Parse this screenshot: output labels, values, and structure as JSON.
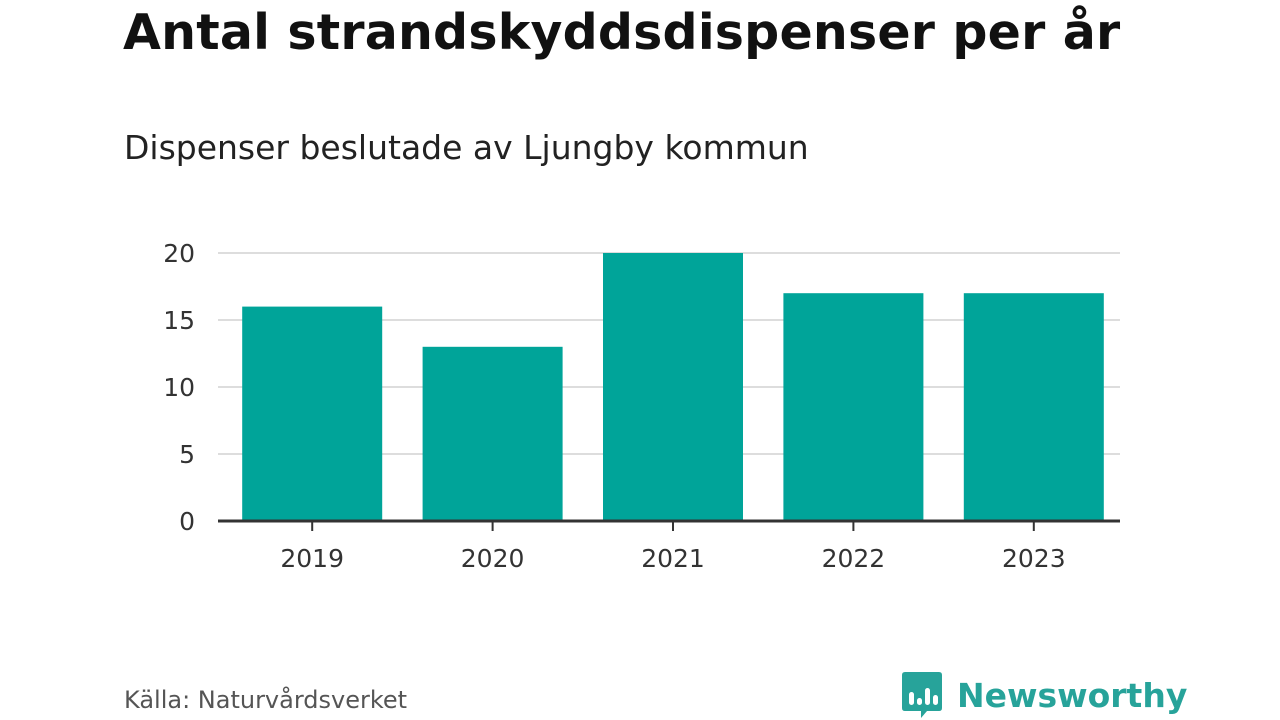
{
  "header": {
    "title": "Antal strandskyddsdispenser per år",
    "subtitle": "Dispenser beslutade av Ljungby kommun"
  },
  "footer": {
    "source": "Källa: Naturvårdsverket",
    "brand": "Newsworthy",
    "brand_icon": "newsworthy-logo-icon",
    "brand_color": "#27a39a"
  },
  "colors": {
    "bar": "#00a499",
    "grid": "#dddddd",
    "axis": "#333333",
    "tick_text": "#333333"
  },
  "chart_data": {
    "type": "bar",
    "title": "Antal strandskyddsdispenser per år",
    "subtitle": "Dispenser beslutade av Ljungby kommun",
    "categories": [
      "2019",
      "2020",
      "2021",
      "2022",
      "2023"
    ],
    "values": [
      16,
      13,
      20,
      17,
      17
    ],
    "xlabel": "",
    "ylabel": "",
    "ylim": [
      0,
      20
    ],
    "yticks": [
      0,
      5,
      10,
      15,
      20
    ],
    "grid": true,
    "legend": "none"
  }
}
